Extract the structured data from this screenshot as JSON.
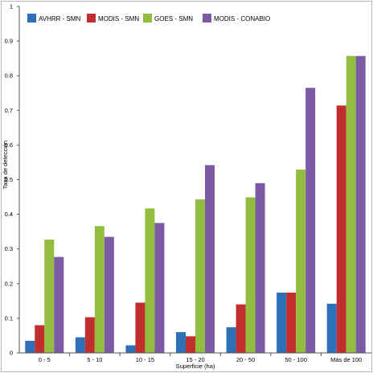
{
  "chart_data": {
    "type": "bar",
    "title": "",
    "xlabel": "Superficie (ha)",
    "ylabel": "Tasa de detección",
    "ylim": [
      0,
      1
    ],
    "yticks": [
      "0",
      "0.1",
      "0.2",
      "0.3",
      "0.4",
      "0.5",
      "0.6",
      "0.7",
      "0.8",
      "0.9",
      "1"
    ],
    "grid": false,
    "legend_position": "top",
    "categories": [
      "0 - 5",
      "5 - 10",
      "10 - 15",
      "15 - 20",
      "20 - 50",
      "50 - 100",
      "Más de 100"
    ],
    "series": [
      {
        "name": "AVHRR - SMN",
        "color": "#2e70b8",
        "values": [
          0.035,
          0.045,
          0.022,
          0.06,
          0.074,
          0.174,
          0.142
        ]
      },
      {
        "name": "MODIS - SMN",
        "color": "#c02e2e",
        "values": [
          0.08,
          0.103,
          0.145,
          0.048,
          0.14,
          0.174,
          0.714
        ]
      },
      {
        "name": "GOES - SMN",
        "color": "#92bd3f",
        "values": [
          0.327,
          0.366,
          0.417,
          0.443,
          0.449,
          0.529,
          0.857
        ]
      },
      {
        "name": "MODIS - CONABIO",
        "color": "#7c5ba4",
        "values": [
          0.277,
          0.335,
          0.375,
          0.542,
          0.49,
          0.765,
          0.857
        ]
      }
    ]
  }
}
